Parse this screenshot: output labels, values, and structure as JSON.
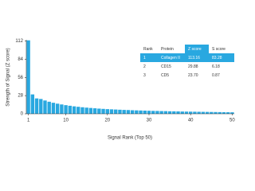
{
  "chart_data": {
    "type": "bar",
    "y_label": "Strength of Signal (Z score)",
    "x_label": "Signal Rank (Top 50)",
    "color": "#29a8e0",
    "x": [
      1,
      2,
      3,
      4,
      5,
      6,
      7,
      8,
      9,
      10,
      11,
      12,
      13,
      14,
      15,
      16,
      17,
      18,
      19,
      20,
      21,
      22,
      23,
      24,
      25,
      26,
      27,
      28,
      29,
      30,
      31,
      32,
      33,
      34,
      35,
      36,
      37,
      38,
      39,
      40,
      41,
      42,
      43,
      44,
      45,
      46,
      47,
      48,
      49,
      50
    ],
    "values": [
      113.16,
      29.88,
      23.7,
      22.83,
      20.5,
      18.6,
      17.0,
      15.6,
      14.4,
      13.3,
      12.4,
      11.5,
      10.8,
      10.1,
      9.5,
      9.0,
      8.5,
      8.0,
      7.6,
      7.2,
      6.9,
      6.6,
      6.3,
      6.0,
      5.8,
      5.5,
      5.3,
      5.1,
      4.9,
      4.7,
      4.5,
      4.4,
      4.2,
      4.1,
      3.9,
      3.8,
      3.7,
      3.5,
      3.4,
      3.3,
      3.2,
      3.1,
      3.0,
      2.9,
      2.8,
      2.7,
      2.6,
      2.5,
      2.4,
      2.3
    ],
    "xlim": [
      0.5,
      50.5
    ],
    "xticks": [
      1,
      10,
      20,
      30,
      40,
      50
    ],
    "ylim": [
      0,
      114
    ],
    "yticks": [
      0,
      28,
      56,
      84,
      112
    ],
    "table": {
      "header": [
        "Rank",
        "Protein",
        "Z score",
        "S score"
      ],
      "rows": [
        [
          "1",
          "Collagen II",
          "113.16",
          "83.28"
        ],
        [
          "2",
          "CD15",
          "29.88",
          "6.18"
        ],
        [
          "3",
          "CD5",
          "23.70",
          "0.87"
        ]
      ]
    }
  }
}
